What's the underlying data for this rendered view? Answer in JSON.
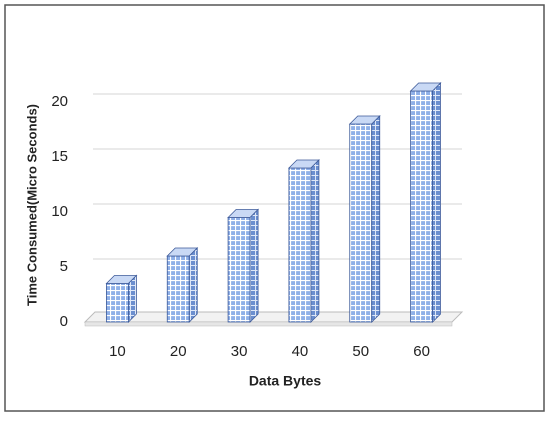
{
  "chart_data": {
    "type": "bar3d",
    "x_label": "Data Bytes",
    "y_label": "Time Consumed(Micro Seconds)",
    "categories": [
      "10",
      "20",
      "30",
      "40",
      "50",
      "60"
    ],
    "values": [
      3.5,
      6,
      9.5,
      14,
      18,
      21
    ],
    "color": "#a9c2ee",
    "ylim": [
      0,
      22
    ],
    "yticks": [
      0,
      5,
      10,
      15,
      20
    ],
    "grid": true
  }
}
